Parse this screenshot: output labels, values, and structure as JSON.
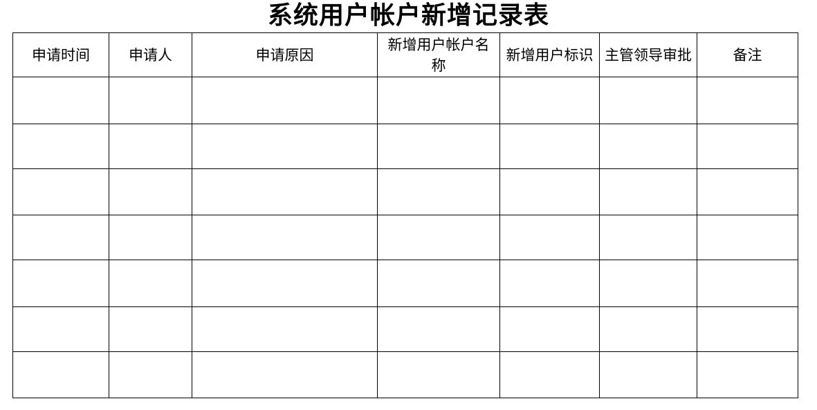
{
  "title": "系统用户帐户新增记录表",
  "columns": [
    "申请时间",
    "申请人",
    "申请原因",
    "新增用户帐户名称",
    "新增用户标识",
    "主管领导审批",
    "备注"
  ],
  "row_count": 7
}
